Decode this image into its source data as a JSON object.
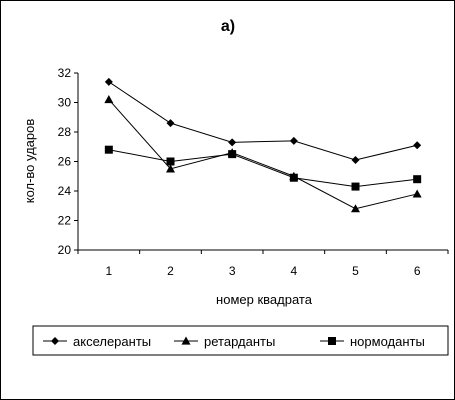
{
  "chart_data": {
    "type": "line",
    "title": "а)",
    "xlabel": "номер квадрата",
    "ylabel": "кол-во ударов",
    "x": [
      1,
      2,
      3,
      4,
      5,
      6
    ],
    "xtick_labels": [
      "1",
      "2",
      "3",
      "4",
      "5",
      "6"
    ],
    "ylim": [
      20,
      32
    ],
    "ytick_labels": [
      "20",
      "22",
      "24",
      "26",
      "28",
      "30",
      "32"
    ],
    "grid": false,
    "legend_position": "bottom",
    "series": [
      {
        "name": "акселеранты",
        "marker": "diamond",
        "values": [
          31.4,
          28.6,
          27.3,
          27.4,
          26.1,
          27.1
        ]
      },
      {
        "name": "ретарданты",
        "marker": "triangle",
        "values": [
          30.2,
          25.5,
          26.6,
          25.0,
          22.8,
          23.8
        ]
      },
      {
        "name": "нормоданты",
        "marker": "square",
        "values": [
          26.8,
          26.0,
          26.5,
          24.9,
          24.3,
          24.8
        ]
      }
    ],
    "colors": {
      "line": "#000000",
      "background": "#ffffff"
    }
  }
}
